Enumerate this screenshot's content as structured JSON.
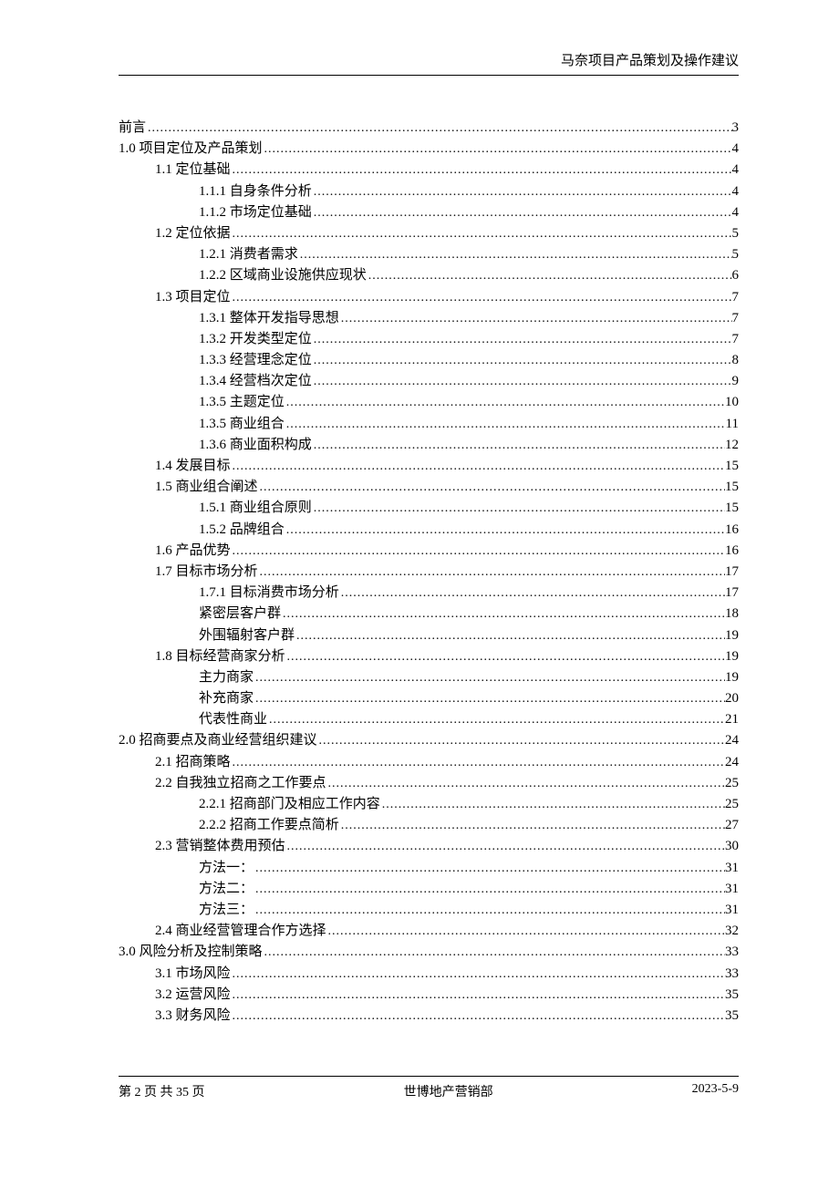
{
  "header": {
    "title": "马奈项目产品策划及操作建议"
  },
  "toc": [
    {
      "label": "前言",
      "page": "3",
      "indent": 0
    },
    {
      "label": "1.0  项目定位及产品策划",
      "page": "4",
      "indent": 0
    },
    {
      "label": "1.1 定位基础",
      "page": "4",
      "indent": 1
    },
    {
      "label": "1.1.1 自身条件分析",
      "page": "4",
      "indent": 2
    },
    {
      "label": "1.1.2 市场定位基础",
      "page": "4",
      "indent": 2
    },
    {
      "label": "1.2 定位依据",
      "page": "5",
      "indent": 1
    },
    {
      "label": "1.2.1 消费者需求",
      "page": "5",
      "indent": 2
    },
    {
      "label": "1.2.2 区域商业设施供应现状",
      "page": "6",
      "indent": 2
    },
    {
      "label": "1.3 项目定位",
      "page": "7",
      "indent": 1
    },
    {
      "label": "1.3.1 整体开发指导思想",
      "page": "7",
      "indent": 2
    },
    {
      "label": "1.3.2 开发类型定位",
      "page": "7",
      "indent": 2
    },
    {
      "label": "1.3.3 经营理念定位",
      "page": "8",
      "indent": 2
    },
    {
      "label": "1.3.4 经营档次定位",
      "page": "9",
      "indent": 2
    },
    {
      "label": "1.3.5 主题定位",
      "page": "10",
      "indent": 2
    },
    {
      "label": "1.3.5  商业组合",
      "page": "11",
      "indent": 2
    },
    {
      "label": "1.3.6  商业面积构成",
      "page": "12",
      "indent": 2
    },
    {
      "label": "1.4 发展目标",
      "page": "15",
      "indent": 1
    },
    {
      "label": "1.5 商业组合阐述",
      "page": "15",
      "indent": 1
    },
    {
      "label": "1.5.1 商业组合原则",
      "page": "15",
      "indent": 2
    },
    {
      "label": "1.5.2 品牌组合",
      "page": "16",
      "indent": 2
    },
    {
      "label": "1.6 产品优势",
      "page": "16",
      "indent": 1
    },
    {
      "label": "1.7  目标市场分析",
      "page": "17",
      "indent": 1
    },
    {
      "label": "1.7.1 目标消费市场分析",
      "page": "17",
      "indent": 2
    },
    {
      "label": "紧密层客户群",
      "page": "18",
      "indent": 2
    },
    {
      "label": "外围辐射客户群",
      "page": "19",
      "indent": 2
    },
    {
      "label": "1.8 目标经营商家分析",
      "page": "19",
      "indent": 1
    },
    {
      "label": "主力商家",
      "page": "19",
      "indent": 2
    },
    {
      "label": "补充商家",
      "page": "20",
      "indent": 2
    },
    {
      "label": "代表性商业",
      "page": "21",
      "indent": 2
    },
    {
      "label": "2.0  招商要点及商业经营组织建议",
      "page": "24",
      "indent": 0
    },
    {
      "label": "2.1 招商策略",
      "page": "24",
      "indent": 1
    },
    {
      "label": "2.2 自我独立招商之工作要点",
      "page": "25",
      "indent": 1
    },
    {
      "label": "2.2.1 招商部门及相应工作内容",
      "page": "25",
      "indent": 2
    },
    {
      "label": "2.2.2 招商工作要点简析",
      "page": "27",
      "indent": 2
    },
    {
      "label": "2.3 营销整体费用预估",
      "page": "30",
      "indent": 1
    },
    {
      "label": "方法一：",
      "page": "31",
      "indent": 2
    },
    {
      "label": "方法二：",
      "page": "31",
      "indent": 2
    },
    {
      "label": "方法三：",
      "page": "31",
      "indent": 2
    },
    {
      "label": "2.4 商业经营管理合作方选择",
      "page": "32",
      "indent": 1
    },
    {
      "label": "3.0  风险分析及控制策略",
      "page": "33",
      "indent": 0
    },
    {
      "label": "3.1 市场风险",
      "page": "33",
      "indent": 1
    },
    {
      "label": "3.2 运营风险",
      "page": "35",
      "indent": 1
    },
    {
      "label": "3.3 财务风险",
      "page": "35",
      "indent": 1
    }
  ],
  "footer": {
    "left": "第 2 页 共 35 页",
    "center": "世博地产营销部",
    "right": "2023-5-9"
  }
}
